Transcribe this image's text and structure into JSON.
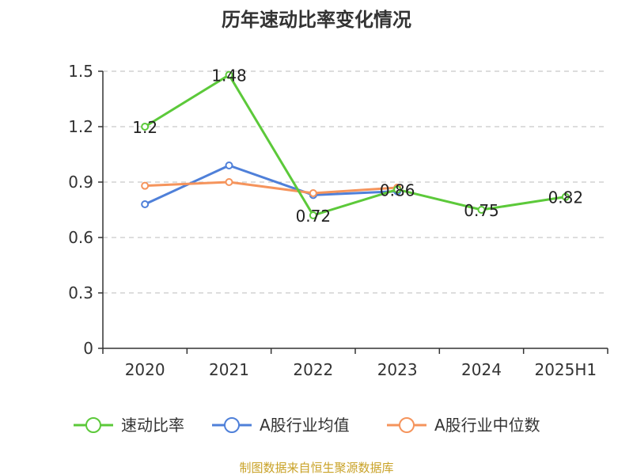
{
  "chart_data": {
    "type": "line",
    "title": "历年速动比率变化情况",
    "categories": [
      "2020",
      "2021",
      "2022",
      "2023",
      "2024",
      "2025H1"
    ],
    "ylim": [
      0,
      1.5
    ],
    "yticks": [
      "0",
      "0.3",
      "0.6",
      "0.9",
      "1.2",
      "1.5"
    ],
    "grid": true,
    "legend_position": "bottom",
    "series": [
      {
        "name": "速动比率",
        "color": "#5cc93a",
        "values": [
          1.2,
          1.48,
          0.72,
          0.86,
          0.75,
          0.82
        ],
        "labels": [
          "1.2",
          "1.48",
          "0.72",
          "0.86",
          "0.75",
          "0.82"
        ]
      },
      {
        "name": "A股行业均值",
        "color": "#4f80d9",
        "values": [
          0.78,
          0.99,
          0.83,
          0.85,
          null,
          null
        ]
      },
      {
        "name": "A股行业中位数",
        "color": "#f5945c",
        "values": [
          0.88,
          0.9,
          0.84,
          0.87,
          null,
          null
        ]
      }
    ]
  },
  "source_text": "制图数据来自恒生聚源数据库"
}
